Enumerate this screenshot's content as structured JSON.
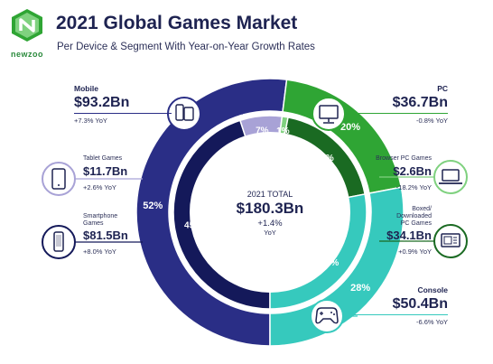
{
  "header": {
    "logo_text": "newzoo",
    "title": "2021 Global Games Market",
    "subtitle": "Per Device & Segment With Year-on-Year Growth Rates"
  },
  "colors": {
    "mobile": "#2a2e86",
    "smartphone": "#14195a",
    "tablet": "#a8a2d6",
    "pc": "#2fa534",
    "browser_pc": "#7fd17f",
    "boxed_pc": "#1a6a22",
    "console": "#36c9bd",
    "console_inner": "#36c9bd"
  },
  "center": {
    "label": "2021 TOTAL",
    "value": "$180.3Bn",
    "growth": "+1.4%",
    "growth_label": "YoY"
  },
  "callouts": {
    "mobile": {
      "title": "Mobile",
      "value": "$93.2Bn",
      "yoy": "+7.3% YoY"
    },
    "tablet": {
      "title": "Tablet Games",
      "value": "$11.7Bn",
      "yoy": "+2.6% YoY"
    },
    "smartphone": {
      "title_line1": "Smartphone",
      "title_line2": "Games",
      "value": "$81.5Bn",
      "yoy": "+8.0% YoY"
    },
    "pc": {
      "title": "PC",
      "value": "$36.7Bn",
      "yoy": "-0.8% YoY"
    },
    "browser": {
      "title": "Browser PC Games",
      "value": "$2.6Bn",
      "yoy": "-18.2% YoY"
    },
    "boxed": {
      "title_line1": "Boxed/",
      "title_line2": "Downloaded",
      "title_line3": "PC Games",
      "value": "$34.1Bn",
      "yoy": "+0.9% YoY"
    },
    "console": {
      "title": "Console",
      "value": "$50.4Bn",
      "yoy": "-6.6% YoY"
    }
  },
  "chart_data": {
    "type": "pie",
    "title": "2021 Global Games Market",
    "subtitle": "Per Device & Segment With Year-on-Year Growth Rates",
    "outer_ring": {
      "slices": [
        {
          "name": "Mobile",
          "value": 52,
          "label": "52%",
          "revenue": "$93.2Bn",
          "yoy": "+7.3% YoY"
        },
        {
          "name": "PC",
          "value": 20,
          "label": "20%",
          "revenue": "$36.7Bn",
          "yoy": "-0.8% YoY"
        },
        {
          "name": "Console",
          "value": 28,
          "label": "28%",
          "revenue": "$50.4Bn",
          "yoy": "-6.6% YoY"
        }
      ]
    },
    "inner_ring": {
      "slices": [
        {
          "name": "Smartphone Games",
          "value": 45,
          "label": "45%",
          "revenue": "$81.5Bn",
          "yoy": "+8.0% YoY"
        },
        {
          "name": "Tablet Games",
          "value": 7,
          "label": "7%",
          "revenue": "$11.7Bn",
          "yoy": "+2.6% YoY"
        },
        {
          "name": "Browser PC Games",
          "value": 1,
          "label": "1%",
          "revenue": "$2.6Bn",
          "yoy": "-18.2% YoY"
        },
        {
          "name": "Boxed/Downloaded PC Games",
          "value": 19,
          "label": "19%",
          "revenue": "$34.1Bn",
          "yoy": "+0.9% YoY"
        },
        {
          "name": "Console",
          "value": 28,
          "label": "28%",
          "revenue": "$50.4Bn",
          "yoy": "-6.6% YoY"
        }
      ]
    },
    "total": {
      "label": "2021 TOTAL",
      "value": "$180.3Bn",
      "growth": "+1.4% YoY"
    }
  }
}
